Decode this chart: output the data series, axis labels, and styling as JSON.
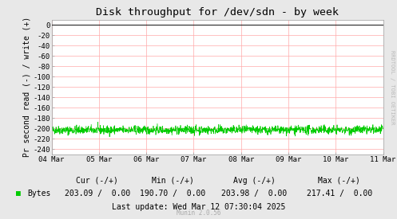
{
  "title": "Disk throughput for /dev/sdn - by week",
  "ylabel": "Pr second read (-) / write (+)",
  "background_color": "#e8e8e8",
  "plot_bg_color": "#ffffff",
  "grid_color": "#ffaaaa",
  "line_color": "#00cc00",
  "border_color": "#aaaaaa",
  "top_line_color": "#111111",
  "ylim": [
    -250,
    10
  ],
  "yticks": [
    0,
    -20,
    -40,
    -60,
    -80,
    -100,
    -120,
    -140,
    -160,
    -180,
    -200,
    -220,
    -240
  ],
  "xticklabels": [
    "04 Mar",
    "05 Mar",
    "06 Mar",
    "07 Mar",
    "08 Mar",
    "09 Mar",
    "10 Mar",
    "11 Mar"
  ],
  "line_mean": -203.0,
  "line_noise": 4.0,
  "num_points": 1500,
  "legend_label": "Bytes",
  "cur_read": "203.09",
  "cur_write": "0.00",
  "min_read": "190.70",
  "min_write": "0.00",
  "avg_read": "203.98",
  "avg_write": "0.00",
  "max_read": "217.41",
  "max_write": "0.00",
  "last_update": "Last update: Wed Mar 12 07:30:04 2025",
  "munin_version": "Munin 2.0.56",
  "watermark": "RRDTOOL / TOBI OETIKER",
  "title_fontsize": 9.5,
  "axis_label_fontsize": 7,
  "legend_fontsize": 7,
  "tick_fontsize": 6.5,
  "watermark_fontsize": 5,
  "munin_fontsize": 5.5
}
